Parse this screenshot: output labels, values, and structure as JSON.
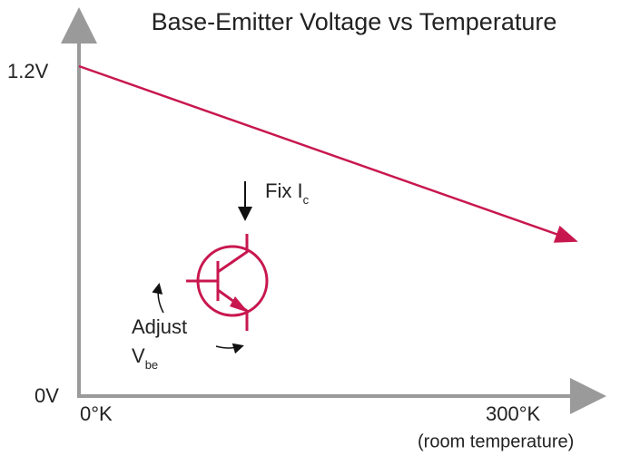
{
  "title": "Base-Emitter Voltage vs Temperature",
  "y_axis": {
    "top_label": "1.2V",
    "bottom_label": "0V"
  },
  "x_axis": {
    "left_label": "0°K",
    "right_label": "300°K",
    "note": "(room temperature)"
  },
  "transistor": {
    "fix_label": "Fix I",
    "fix_subscript": "c",
    "adjust_label": "Adjust",
    "adjust_symbol": "V",
    "adjust_subscript": "be"
  }
}
